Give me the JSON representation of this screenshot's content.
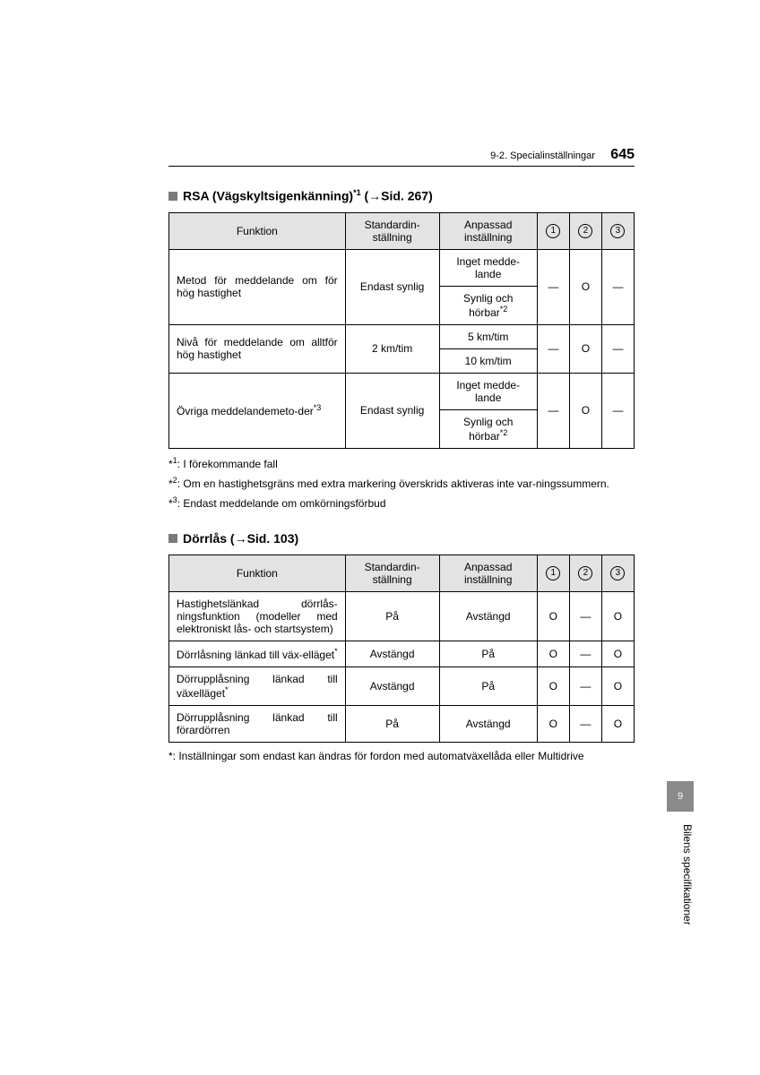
{
  "header": {
    "section": "9-2. Specialinställningar",
    "page_number": "645"
  },
  "side_tab": {
    "number": "9",
    "label": "Bilens specifikationer"
  },
  "colors": {
    "header_bg": "#e3e3e3",
    "square_bullet": "#7a7a7a",
    "tab_bg": "#8a8a8a",
    "border": "#000000",
    "text": "#000000",
    "background": "#ffffff"
  },
  "section1": {
    "title_prefix": "RSA (Vägskyltsigenkänning)",
    "title_super": "*1",
    "title_ref": " (→Sid. 267)",
    "columns": {
      "function": "Funktion",
      "standard": "Standardin-ställning",
      "custom": "Anpassad inställning",
      "c1": "1",
      "c2": "2",
      "c3": "3"
    },
    "rows": [
      {
        "function": "Metod för meddelande om för hög hastighet",
        "standard": "Endast synlig",
        "custom": [
          "Inget medde-lande",
          "Synlig och hörbar"
        ],
        "custom_super": [
          null,
          "*2"
        ],
        "c1": "—",
        "c2": "O",
        "c3": "—"
      },
      {
        "function": "Nivå för meddelande om alltför hög hastighet",
        "standard": "2 km/tim",
        "custom": [
          "5 km/tim",
          "10 km/tim"
        ],
        "custom_super": [
          null,
          null
        ],
        "c1": "—",
        "c2": "O",
        "c3": "—"
      },
      {
        "function": "Övriga meddelandemeto-der",
        "function_super": "*3",
        "standard": "Endast synlig",
        "custom": [
          "Inget medde-lande",
          "Synlig och hörbar"
        ],
        "custom_super": [
          null,
          "*2"
        ],
        "c1": "—",
        "c2": "O",
        "c3": "—"
      }
    ],
    "footnotes": [
      {
        "mark": "*1",
        "text": ": I förekommande fall"
      },
      {
        "mark": "*2",
        "text": ": Om en hastighetsgräns med extra markering överskrids aktiveras inte var-ningssummern."
      },
      {
        "mark": "*3",
        "text": ": Endast meddelande om omkörningsförbud"
      }
    ]
  },
  "section2": {
    "title": "Dörrlås (→Sid. 103)",
    "columns": {
      "function": "Funktion",
      "standard": "Standardin-ställning",
      "custom": "Anpassad inställning",
      "c1": "1",
      "c2": "2",
      "c3": "3"
    },
    "rows": [
      {
        "function": "Hastighetslänkad dörrlås-ningsfunktion (modeller med elektroniskt lås- och startsystem)",
        "function_super": null,
        "standard": "På",
        "custom": "Avstängd",
        "c1": "O",
        "c2": "—",
        "c3": "O"
      },
      {
        "function": "Dörrlåsning länkad till väx-elläget",
        "function_super": "*",
        "standard": "Avstängd",
        "custom": "På",
        "c1": "O",
        "c2": "—",
        "c3": "O"
      },
      {
        "function": "Dörrupplåsning länkad till växelläget",
        "function_super": "*",
        "standard": "Avstängd",
        "custom": "På",
        "c1": "O",
        "c2": "—",
        "c3": "O"
      },
      {
        "function": "Dörrupplåsning länkad till förardörren",
        "function_super": null,
        "standard": "På",
        "custom": "Avstängd",
        "c1": "O",
        "c2": "—",
        "c3": "O"
      }
    ],
    "footnotes": [
      {
        "mark": "*",
        "text": ": Inställningar som endast kan ändras för fordon med automatväxellåda eller Multidrive"
      }
    ]
  }
}
